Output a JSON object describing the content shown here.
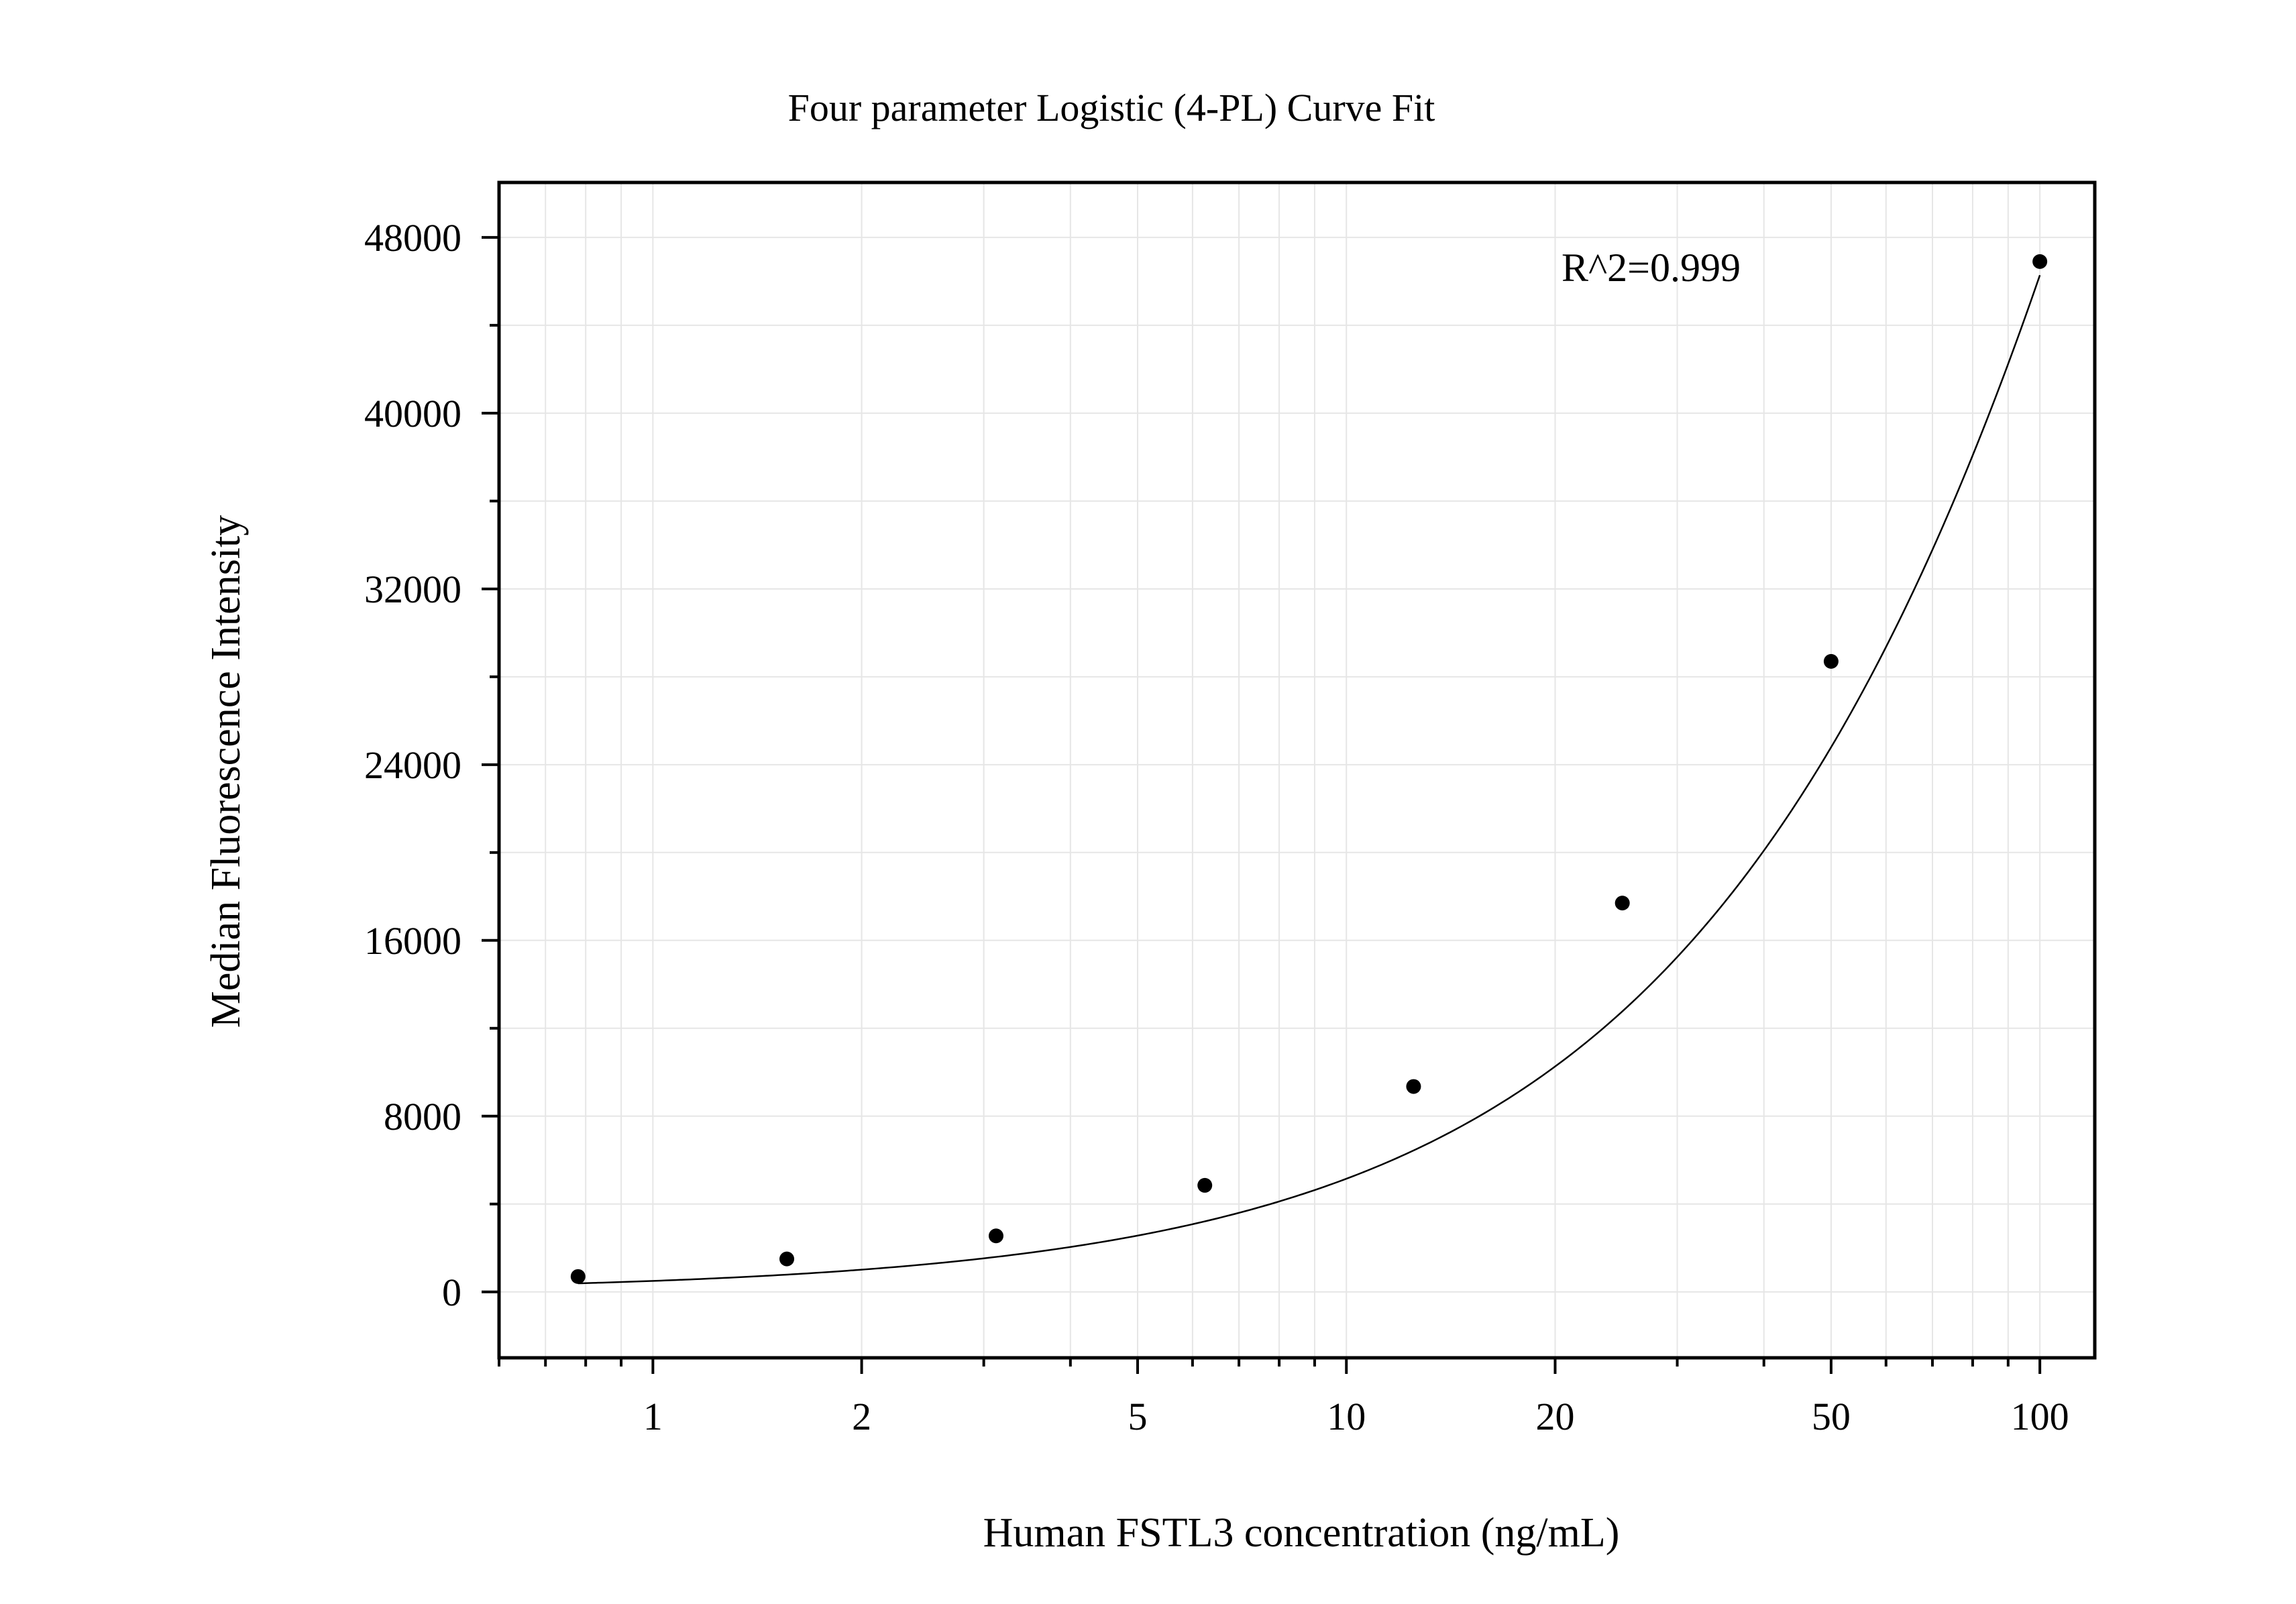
{
  "chart_data": {
    "type": "scatter",
    "title": "Four parameter Logistic (4-PL) Curve Fit",
    "xlabel": "Human FSTL3 concentration (ng/mL)",
    "ylabel": "Median Fluorescence Intensity",
    "x_scale": "log",
    "xlim": [
      0.6,
      120
    ],
    "ylim": [
      -3000,
      50500
    ],
    "grid": true,
    "x_ticks": [
      1,
      2,
      5,
      10,
      20,
      50,
      100
    ],
    "x_tick_labels": [
      "1",
      "2",
      "5",
      "10",
      "20",
      "50",
      "100"
    ],
    "y_ticks": [
      0,
      8000,
      16000,
      24000,
      32000,
      40000,
      48000
    ],
    "y_tick_labels": [
      "0",
      "8000",
      "16000",
      "24000",
      "32000",
      "40000",
      "48000"
    ],
    "annotation": "R^2=0.999",
    "series": [
      {
        "type": "scatter",
        "x": [
          0.78,
          1.56,
          3.125,
          6.25,
          12.5,
          25,
          50,
          100
        ],
        "y": [
          700,
          1500,
          2550,
          4850,
          9350,
          17700,
          28700,
          46900
        ]
      }
    ],
    "fit_curve": {
      "type": "line",
      "model": "4PL",
      "params": {
        "A": 0,
        "B": 1.02,
        "C": 520,
        "D": 295000
      }
    },
    "colors": {
      "points": "#000000",
      "curve": "#000000",
      "grid": "#e6e6e6",
      "frame": "#000000"
    }
  }
}
